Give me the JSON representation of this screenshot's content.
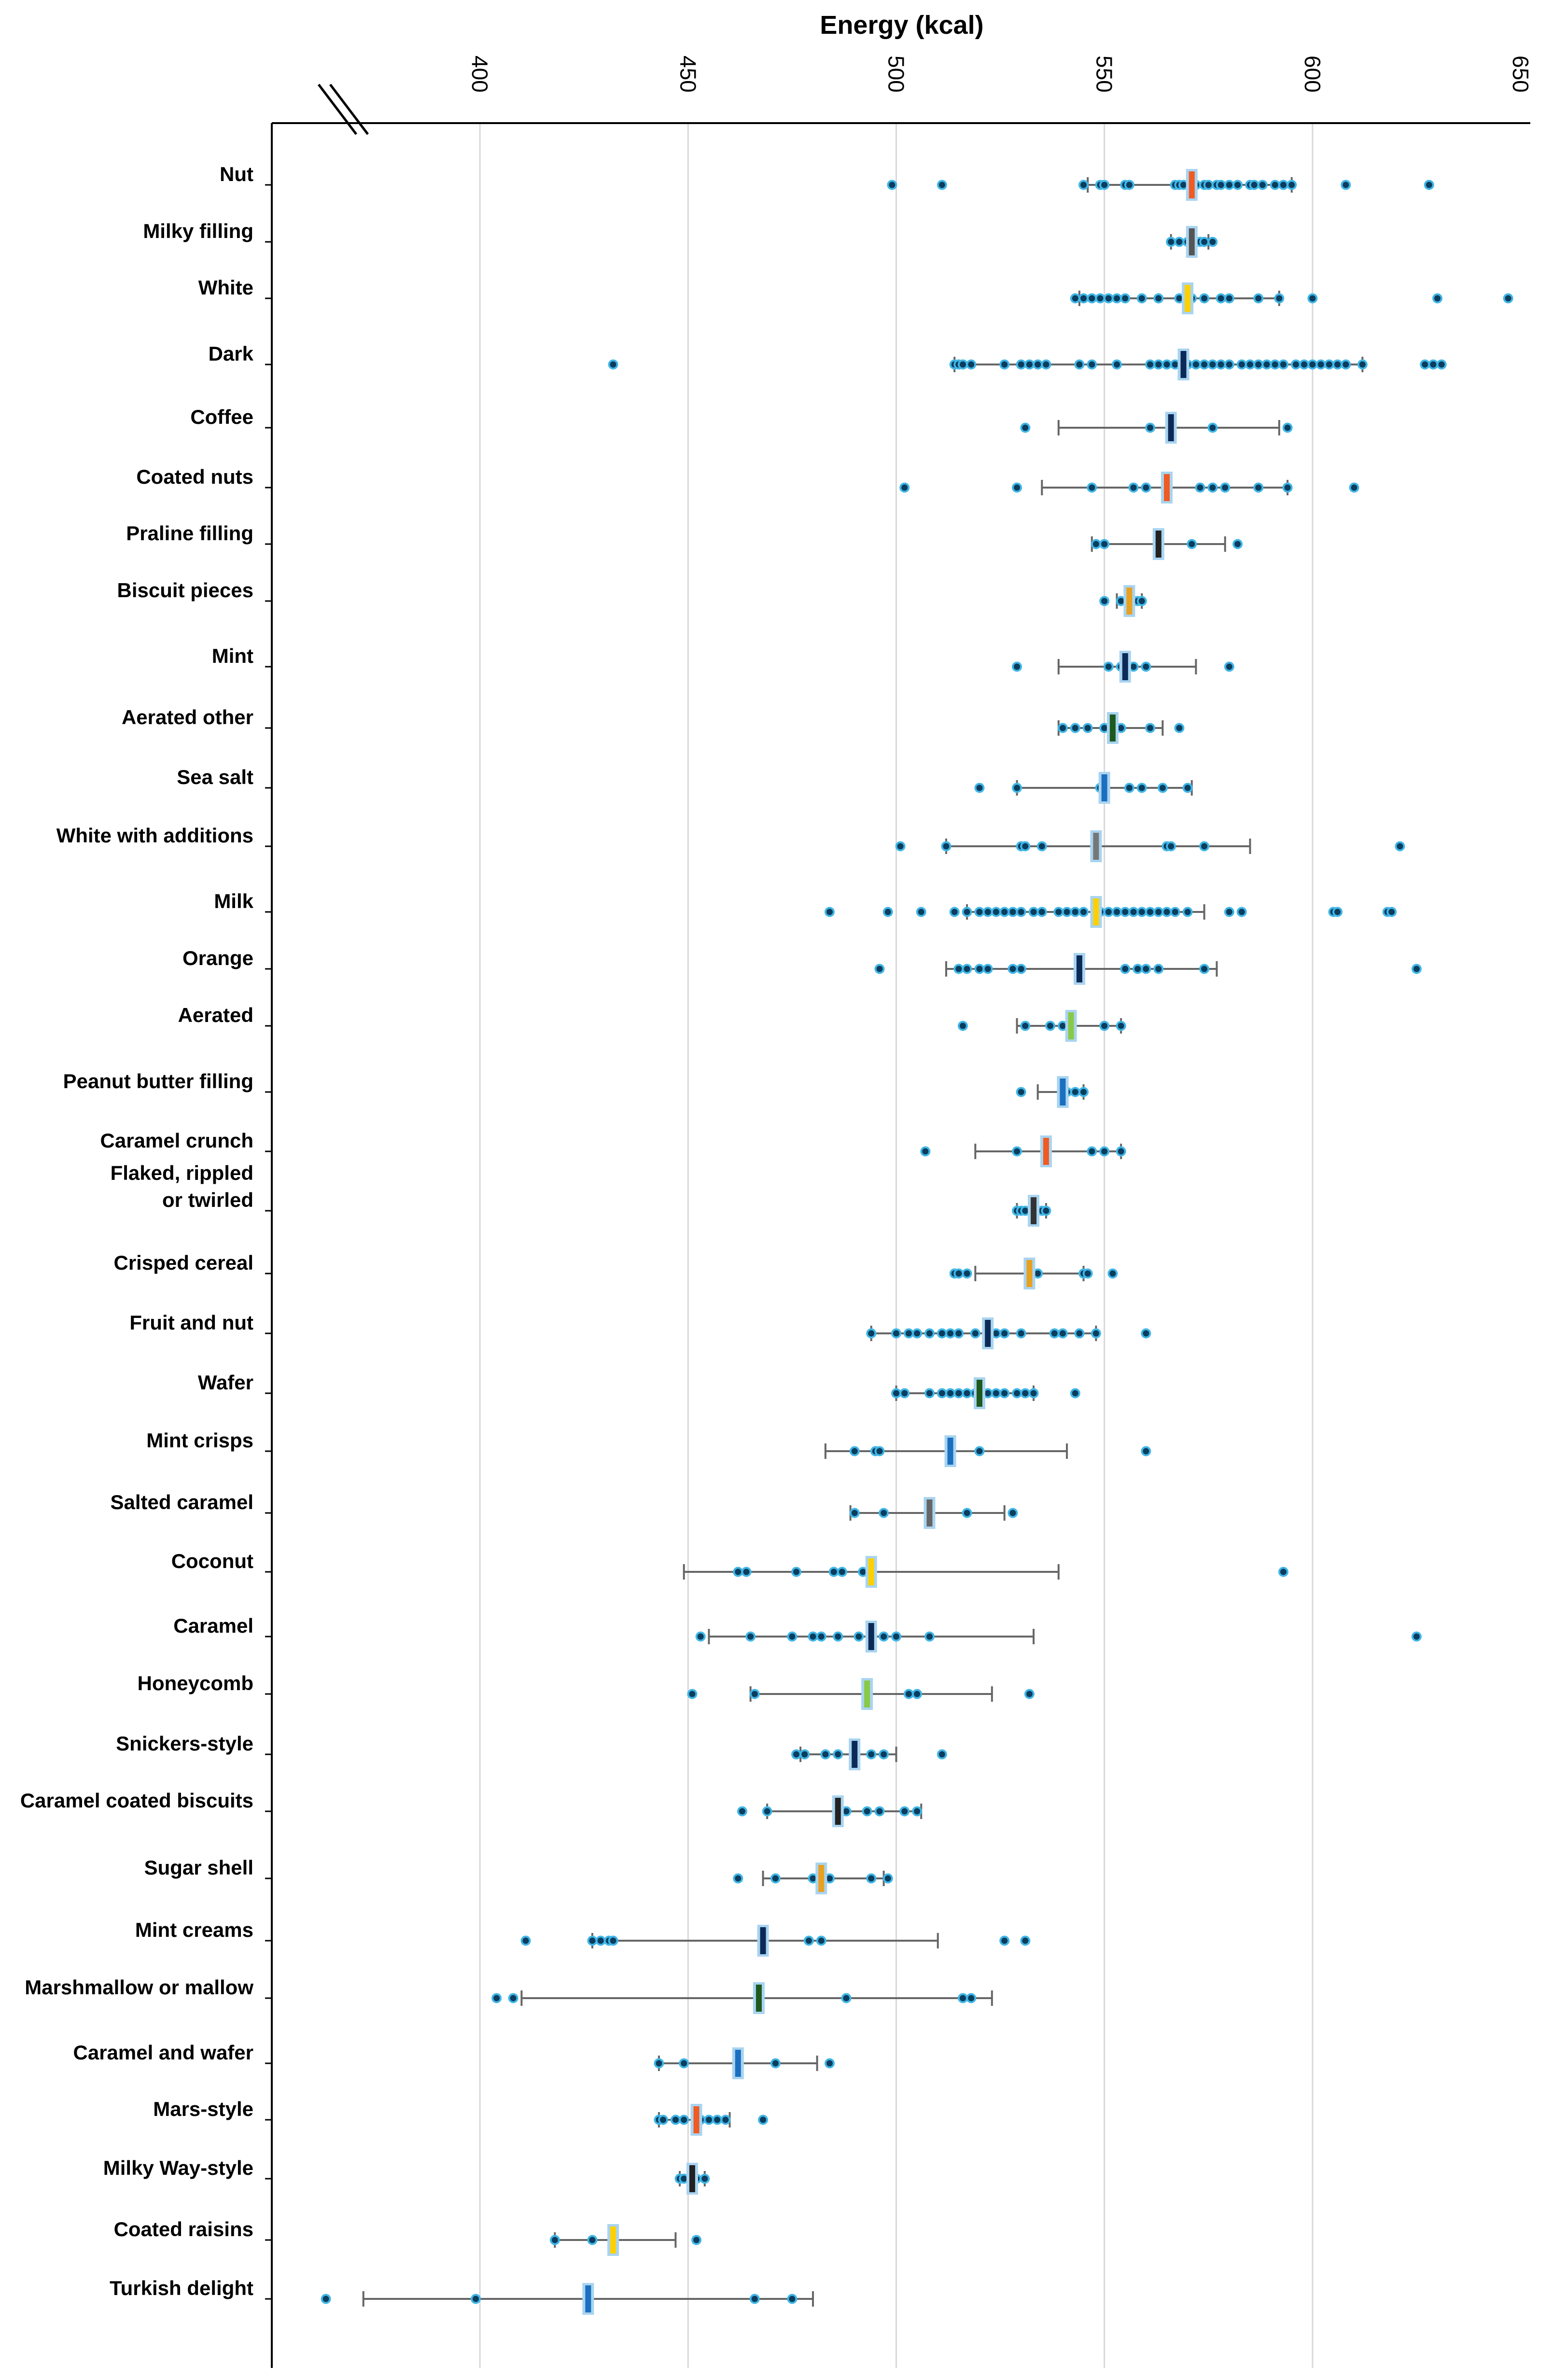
{
  "chart_data": {
    "type": "boxplot",
    "title": "",
    "xlabel": "Energy (kcal)",
    "ylabel": "",
    "xlim": [
      350,
      650
    ],
    "x_ticks": [
      400,
      450,
      500,
      550,
      600,
      650
    ],
    "x_tick_labels": [
      "400",
      "450",
      "500",
      "550",
      "600",
      "650"
    ],
    "axis_break": "left",
    "grid": "vertical",
    "categories": [
      {
        "label": [
          "Nut"
        ],
        "median": 571,
        "whisker": [
          546,
          595
        ],
        "color": "#f05a23",
        "points": [
          499,
          511,
          545,
          549,
          550,
          555,
          556,
          567,
          568,
          569,
          572,
          574,
          575,
          577,
          578,
          580,
          582,
          585,
          586,
          588,
          591,
          593,
          595,
          608,
          628
        ]
      },
      {
        "label": [
          "Milky filling"
        ],
        "median": 571,
        "whisker": [
          566,
          575
        ],
        "color": "#555555",
        "points": [
          566,
          568,
          570,
          572,
          573,
          574,
          576
        ]
      },
      {
        "label": [
          "White"
        ],
        "median": 570,
        "whisker": [
          544,
          592
        ],
        "color": "#ffd000",
        "points": [
          543,
          545,
          547,
          549,
          551,
          553,
          555,
          559,
          563,
          568,
          571,
          574,
          578,
          580,
          587,
          592,
          600,
          630,
          647
        ]
      },
      {
        "label": [
          "Dark"
        ],
        "median": 569,
        "whisker": [
          514,
          612
        ],
        "color": "#0c2a57",
        "points": [
          432,
          514,
          515,
          516,
          518,
          526,
          530,
          532,
          534,
          536,
          544,
          547,
          553,
          561,
          563,
          565,
          567,
          570,
          572,
          574,
          576,
          578,
          580,
          583,
          585,
          587,
          589,
          591,
          593,
          596,
          598,
          600,
          602,
          604,
          606,
          608,
          612,
          627,
          629,
          631
        ]
      },
      {
        "label": [
          "Coffee"
        ],
        "median": 566,
        "whisker": [
          539,
          592
        ],
        "color": "#0c2a57",
        "points": [
          531,
          561,
          576,
          594
        ]
      },
      {
        "label": [
          "Coated nuts"
        ],
        "median": 565,
        "whisker": [
          535,
          594
        ],
        "color": "#f05a23",
        "points": [
          502,
          529,
          547,
          557,
          560,
          573,
          576,
          579,
          587,
          594,
          610
        ]
      },
      {
        "label": [
          "Praline filling"
        ],
        "median": 563,
        "whisker": [
          547,
          579
        ],
        "color": "#222222",
        "points": [
          548,
          550,
          571,
          582
        ]
      },
      {
        "label": [
          "Biscuit pieces"
        ],
        "median": 556,
        "whisker": [
          553,
          559
        ],
        "color": "#e8a020",
        "points": [
          550,
          554,
          556,
          557,
          558,
          559
        ]
      },
      {
        "label": [
          "Mint"
        ],
        "median": 555,
        "whisker": [
          539,
          572
        ],
        "color": "#0c2a57",
        "points": [
          529,
          551,
          554,
          557,
          560,
          580
        ]
      },
      {
        "label": [
          "Aerated other"
        ],
        "median": 552,
        "whisker": [
          539,
          564
        ],
        "color": "#1e5a1e",
        "points": [
          540,
          543,
          546,
          550,
          554,
          561,
          568
        ]
      },
      {
        "label": [
          "Sea salt"
        ],
        "median": 550,
        "whisker": [
          529,
          571
        ],
        "color": "#1a6fc0",
        "points": [
          520,
          529,
          549,
          556,
          559,
          564,
          570
        ]
      },
      {
        "label": [
          "White with additions"
        ],
        "median": 548,
        "whisker": [
          512,
          585
        ],
        "color": "#777777",
        "points": [
          501,
          512,
          530,
          531,
          535,
          565,
          566,
          574,
          621
        ]
      },
      {
        "label": [
          "Milk"
        ],
        "median": 548,
        "whisker": [
          517,
          574
        ],
        "color": "#ffd000",
        "points": [
          484,
          498,
          506,
          514,
          517,
          520,
          522,
          524,
          526,
          528,
          530,
          533,
          535,
          539,
          541,
          543,
          545,
          549,
          551,
          553,
          555,
          557,
          559,
          561,
          563,
          565,
          567,
          570,
          580,
          583,
          605,
          606,
          618,
          619
        ]
      },
      {
        "label": [
          "Orange"
        ],
        "median": 544,
        "whisker": [
          512,
          577
        ],
        "color": "#0c2a57",
        "points": [
          496,
          515,
          517,
          520,
          522,
          528,
          530,
          555,
          558,
          560,
          563,
          574,
          625
        ]
      },
      {
        "label": [
          "Aerated"
        ],
        "median": 542,
        "whisker": [
          529,
          554
        ],
        "color": "#8ac848",
        "points": [
          516,
          531,
          537,
          540,
          550,
          554
        ]
      },
      {
        "label": [
          "Peanut butter filling"
        ],
        "median": 540,
        "whisker": [
          534,
          545
        ],
        "color": "#1a6fc0",
        "points": [
          530,
          541,
          543,
          545
        ]
      },
      {
        "label": [
          "Caramel crunch"
        ],
        "median": 536,
        "whisker": [
          519,
          554
        ],
        "color": "#f05a23",
        "points": [
          507,
          529,
          547,
          550,
          554
        ]
      },
      {
        "label": [
          "Flaked, rippled",
          "or twirled"
        ],
        "median": 533,
        "whisker": [
          529,
          536
        ],
        "color": "#333333",
        "points": [
          529,
          530,
          531,
          535,
          536
        ]
      },
      {
        "label": [
          "Crisped cereal"
        ],
        "median": 532,
        "whisker": [
          519,
          545
        ],
        "color": "#e8a020",
        "points": [
          514,
          515,
          517,
          534,
          545,
          546,
          552
        ]
      },
      {
        "label": [
          "Fruit and nut"
        ],
        "median": 522,
        "whisker": [
          494,
          548
        ],
        "color": "#0c2a57",
        "points": [
          494,
          500,
          503,
          505,
          508,
          511,
          513,
          515,
          519,
          524,
          526,
          530,
          538,
          540,
          544,
          548,
          560
        ]
      },
      {
        "label": [
          "Wafer"
        ],
        "median": 520,
        "whisker": [
          500,
          533
        ],
        "color": "#1e5a1e",
        "points": [
          500,
          502,
          508,
          511,
          513,
          515,
          517,
          519,
          522,
          524,
          526,
          529,
          531,
          533,
          543
        ]
      },
      {
        "label": [
          "Mint crisps"
        ],
        "median": 513,
        "whisker": [
          483,
          541
        ],
        "color": "#1a6fc0",
        "points": [
          490,
          495,
          496,
          520,
          560
        ]
      },
      {
        "label": [
          "Salted caramel"
        ],
        "median": 508,
        "whisker": [
          489,
          526
        ],
        "color": "#666666",
        "points": [
          490,
          497,
          517,
          528
        ]
      },
      {
        "label": [
          "Coconut"
        ],
        "median": 494,
        "whisker": [
          449,
          539
        ],
        "color": "#ffd000",
        "points": [
          462,
          464,
          476,
          485,
          487,
          492,
          593
        ]
      },
      {
        "label": [
          "Caramel"
        ],
        "median": 494,
        "whisker": [
          455,
          533
        ],
        "color": "#0c2a57",
        "points": [
          453,
          465,
          475,
          480,
          482,
          486,
          491,
          497,
          500,
          508,
          625
        ]
      },
      {
        "label": [
          "Honeycomb"
        ],
        "median": 493,
        "whisker": [
          465,
          523
        ],
        "color": "#8ac848",
        "points": [
          451,
          466,
          503,
          505,
          532
        ]
      },
      {
        "label": [
          "Snickers-style"
        ],
        "median": 490,
        "whisker": [
          477,
          500
        ],
        "color": "#0c2a57",
        "points": [
          476,
          478,
          483,
          486,
          490,
          494,
          497,
          511
        ]
      },
      {
        "label": [
          "Caramel coated biscuits"
        ],
        "median": 486,
        "whisker": [
          469,
          506
        ],
        "color": "#222222",
        "points": [
          463,
          469,
          486,
          488,
          493,
          496,
          502,
          505
        ]
      },
      {
        "label": [
          "Sugar shell"
        ],
        "median": 482,
        "whisker": [
          468,
          497
        ],
        "color": "#e8a020",
        "points": [
          462,
          471,
          480,
          484,
          494,
          498
        ]
      },
      {
        "label": [
          "Mint creams"
        ],
        "median": 468,
        "whisker": [
          427,
          510
        ],
        "color": "#0c2a57",
        "points": [
          411,
          427,
          429,
          431,
          432,
          479,
          482,
          526,
          531
        ]
      },
      {
        "label": [
          "Marshmallow or mallow"
        ],
        "median": 467,
        "whisker": [
          410,
          523
        ],
        "color": "#1e5a1e",
        "points": [
          404,
          408,
          488,
          516,
          518
        ]
      },
      {
        "label": [
          "Caramel and wafer"
        ],
        "median": 462,
        "whisker": [
          443,
          481
        ],
        "color": "#1a6fc0",
        "points": [
          443,
          449,
          471,
          484
        ]
      },
      {
        "label": [
          "Mars-style"
        ],
        "median": 452,
        "whisker": [
          443,
          460
        ],
        "color": "#f05a23",
        "points": [
          443,
          444,
          447,
          449,
          453,
          455,
          457,
          459,
          468
        ]
      },
      {
        "label": [
          "Milky Way-style"
        ],
        "median": 451,
        "whisker": [
          448,
          454
        ],
        "color": "#222222",
        "points": [
          448,
          449,
          452,
          454
        ]
      },
      {
        "label": [
          "Coated raisins"
        ],
        "median": 432,
        "whisker": [
          418,
          447
        ],
        "color": "#ffd000",
        "points": [
          418,
          427,
          452
        ]
      },
      {
        "label": [
          "Turkish delight"
        ],
        "median": 426,
        "whisker": [
          372,
          480
        ],
        "color": "#1a6fc0",
        "points": [
          363,
          399,
          466,
          475
        ]
      }
    ]
  }
}
